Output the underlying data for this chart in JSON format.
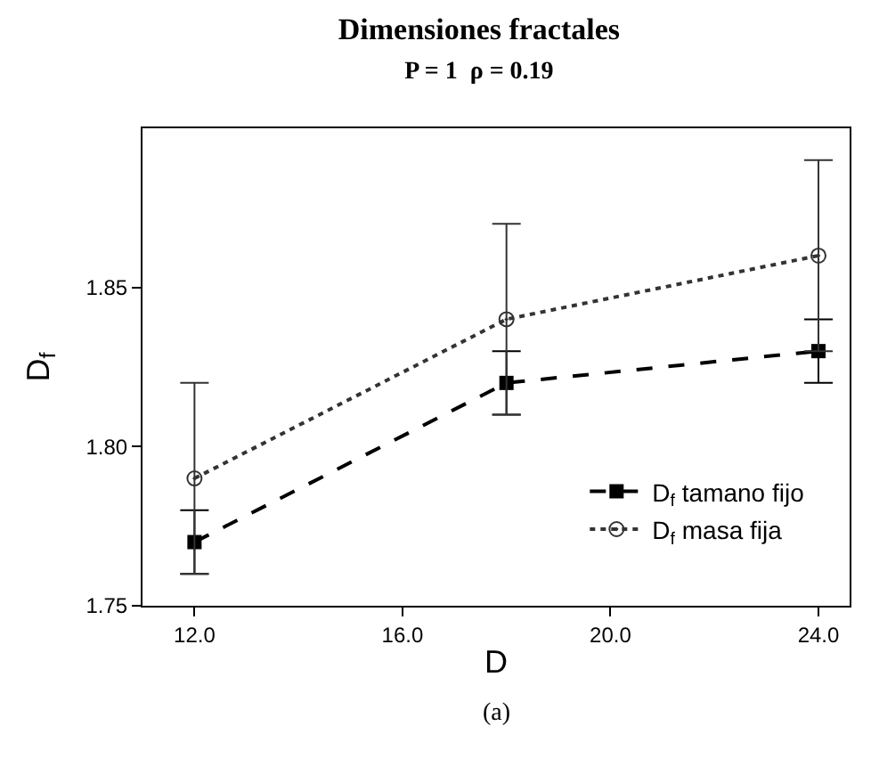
{
  "chart_data": {
    "type": "line",
    "title": "Dimensiones fractales",
    "subtitle": "P = 1  ρ = 0.19",
    "xlabel": "D",
    "ylabel": "D$_{f}$",
    "x": [
      12,
      18,
      24
    ],
    "series": [
      {
        "name": "D$_{f}$ tamano fijo",
        "color": "#000000",
        "values": [
          1.77,
          1.82,
          1.83
        ],
        "errors": [
          0.01,
          0.01,
          0.01
        ],
        "marker": "square",
        "line_style": "dashed"
      },
      {
        "name": "D$_{f}$ masa fija",
        "color": "#333333",
        "values": [
          1.79,
          1.84,
          1.86
        ],
        "errors": [
          0.03,
          0.03,
          0.03
        ],
        "marker": "circle",
        "line_style": "dotted"
      }
    ],
    "xlim": [
      11,
      24.6
    ],
    "xticks": [
      {
        "value": 12,
        "label": "12.0"
      },
      {
        "value": 16,
        "label": "16.0"
      },
      {
        "value": 20,
        "label": "20.0"
      },
      {
        "value": 24,
        "label": "24.0"
      }
    ],
    "ylim": [
      1.75,
      1.9
    ],
    "yticks": [
      {
        "value": 1.75,
        "label": "1.75"
      },
      {
        "value": 1.8,
        "label": "1.80"
      },
      {
        "value": 1.85,
        "label": "1.85"
      }
    ],
    "grid": false,
    "legend": "bottom right",
    "annotations": [
      "(a)"
    ]
  }
}
